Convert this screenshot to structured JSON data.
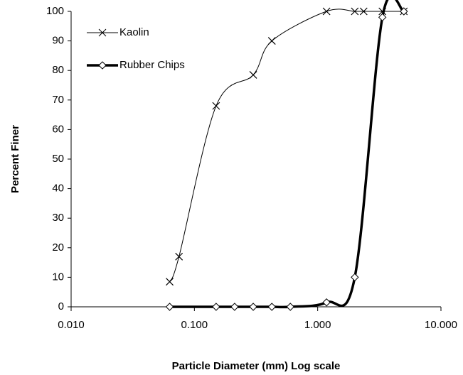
{
  "chart_data": {
    "type": "line",
    "x_label": "Particle Diameter (mm) Log scale",
    "y_label": "Percent Finer",
    "x_log": true,
    "xlim": [
      0.01,
      10
    ],
    "ylim": [
      0,
      100
    ],
    "xticks": [
      {
        "value": 0.01,
        "label": "0.010"
      },
      {
        "value": 0.1,
        "label": "0.100"
      },
      {
        "value": 1,
        "label": "1.000"
      },
      {
        "value": 10,
        "label": "10.000"
      }
    ],
    "yticks": [
      0,
      10,
      20,
      30,
      40,
      50,
      60,
      70,
      80,
      90,
      100
    ],
    "legend": "top-left",
    "grid": false,
    "series": [
      {
        "name": "Kaolin",
        "color": "#000000",
        "width": 1,
        "marker": "x",
        "x": [
          0.063,
          0.075,
          0.15,
          0.3,
          0.425,
          1.18,
          2.0,
          2.36,
          3.35,
          5.0
        ],
        "values": [
          8.5,
          17,
          68,
          78.5,
          90,
          100,
          100,
          100,
          100,
          100
        ]
      },
      {
        "name": "Rubber Chips",
        "color": "#000000",
        "width": 3.5,
        "marker": "diamond",
        "x": [
          0.063,
          0.15,
          0.212,
          0.3,
          0.425,
          0.6,
          1.18,
          2.0,
          3.35,
          5.0
        ],
        "values": [
          0,
          0,
          0,
          0,
          0,
          0,
          1.5,
          10,
          98,
          100
        ]
      }
    ]
  }
}
